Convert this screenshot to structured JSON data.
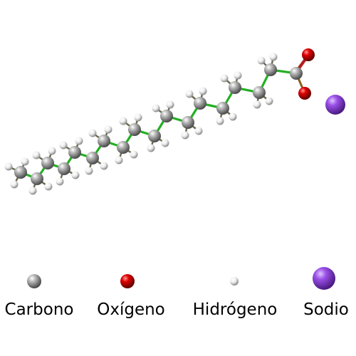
{
  "legend": {
    "carbon": "Carbono",
    "oxygen": "Oxígeno",
    "hydrogen": "Hidrógeno",
    "sodium": "Sodio"
  },
  "colors": {
    "carbon": "#8a8a8a",
    "oxygen": "#cc0000",
    "hydrogen": "#ececec",
    "sodium": "#8e44d9",
    "bond_cc": "#22b022",
    "bond_co": "#b02020"
  }
}
